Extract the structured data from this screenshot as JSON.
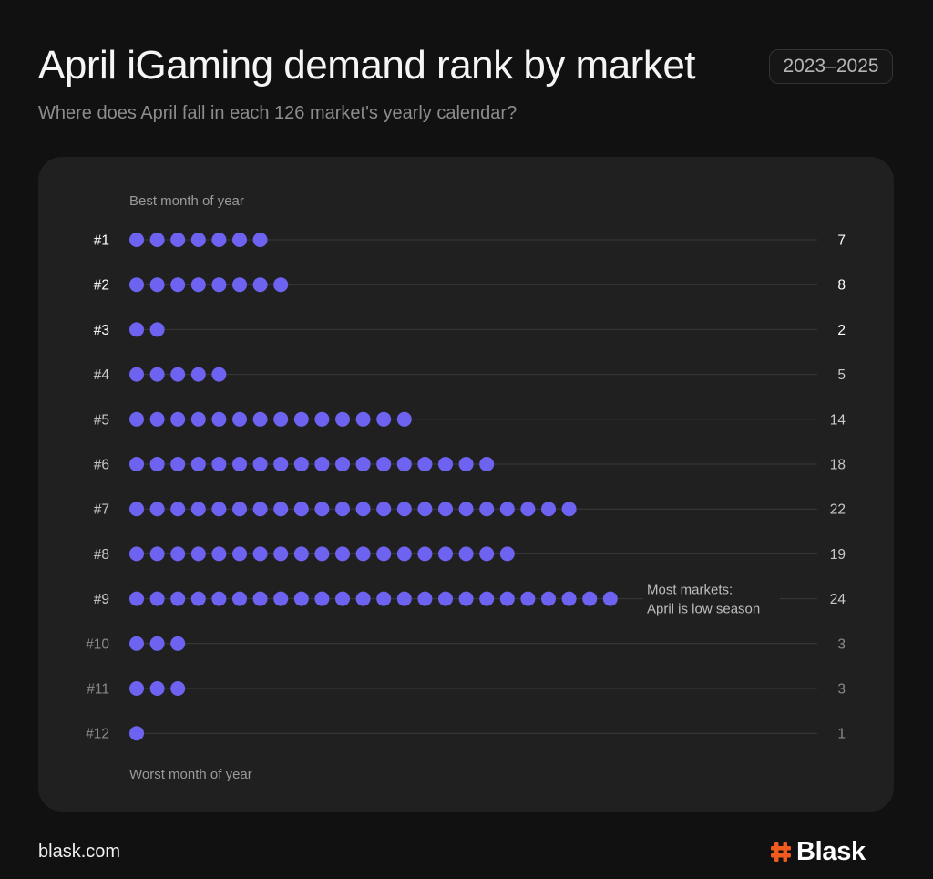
{
  "header": {
    "title": "April iGaming demand rank by market",
    "year_range": "2023–2025",
    "subtitle": "Where does April fall in each 126 market's yearly calendar?"
  },
  "footer": {
    "url": "blask.com",
    "brand": "Blask",
    "brand_icon": "hash-logo-icon"
  },
  "colors": {
    "background": "#111111",
    "panel": "#202020",
    "dot": "#6E63F0",
    "gridline": "#3a3a3a",
    "brand_accent": "#F05A1E",
    "label_bright": "#ffffff",
    "label_mid": "#c9c9c9",
    "label_dim": "#8a8a8a"
  },
  "chart_data": {
    "type": "dot-bar",
    "top_label": "Best month of year",
    "bottom_label": "Worst month of year",
    "categories": [
      "#1",
      "#2",
      "#3",
      "#4",
      "#5",
      "#6",
      "#7",
      "#8",
      "#9",
      "#10",
      "#11",
      "#12"
    ],
    "values": [
      7,
      8,
      2,
      5,
      14,
      18,
      22,
      19,
      24,
      3,
      3,
      1
    ],
    "annotation": {
      "category": "#9",
      "lines": [
        "Most markets:",
        "April is low season"
      ]
    },
    "grid": true
  }
}
